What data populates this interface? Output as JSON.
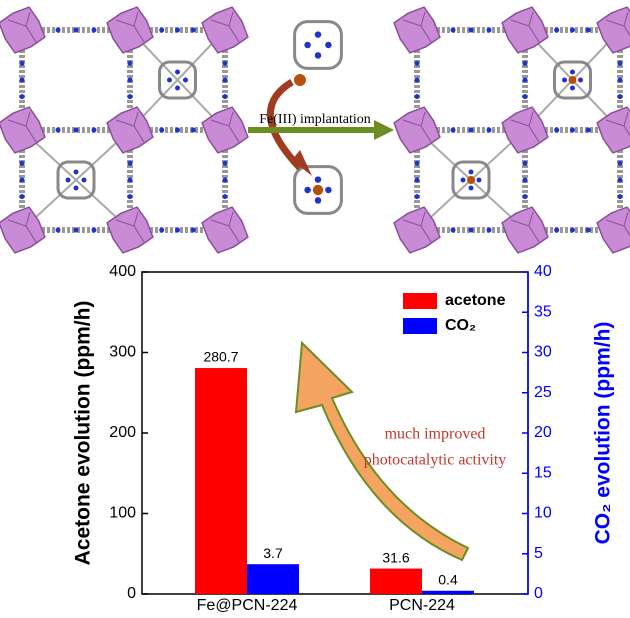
{
  "top_panel": {
    "arrow_label": "Fe(III) implantation"
  },
  "chart_data": {
    "type": "bar",
    "categories": [
      "Fe@PCN-224",
      "PCN-224"
    ],
    "series": [
      {
        "name": "acetone",
        "color": "#ff0000",
        "values": [
          280.7,
          31.6
        ]
      },
      {
        "name": "CO₂",
        "color": "#0000ff",
        "values": [
          3.7,
          0.4
        ],
        "axis": "y2"
      }
    ],
    "ylabel": "Acetone evolution (ppm/h)",
    "y2label": "CO₂ evolution (ppm/h)",
    "ylim": [
      0,
      400
    ],
    "yticks": [
      0,
      100,
      200,
      300,
      400
    ],
    "y2lim": [
      0,
      40
    ],
    "y2ticks": [
      0,
      5,
      10,
      15,
      20,
      25,
      30,
      35,
      40
    ],
    "y2color": "#0000ff",
    "legend": "upper right",
    "annotation": [
      "much improved",
      "photocatalytic activity"
    ],
    "annotation_color": "#c0392b"
  }
}
